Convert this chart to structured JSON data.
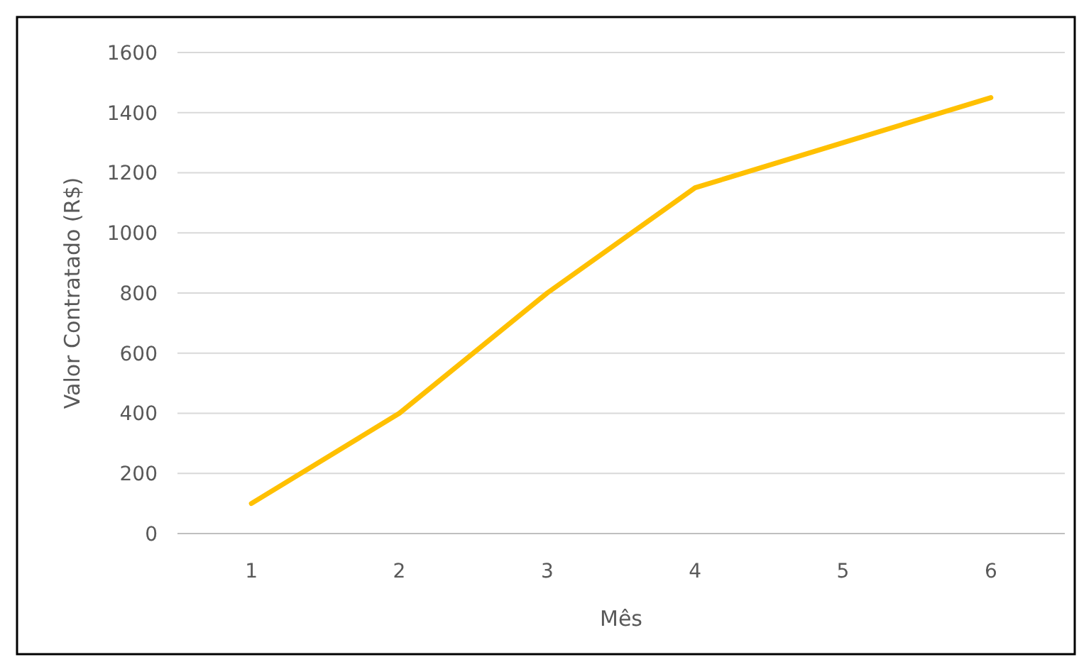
{
  "chart_data": {
    "type": "line",
    "xlabel": "Mês",
    "ylabel": "Valor Contratado (R$)",
    "categories": [
      "1",
      "2",
      "3",
      "4",
      "5",
      "6"
    ],
    "series": [
      {
        "color": "#ffc000",
        "values": [
          100,
          400,
          800,
          1150,
          1300,
          1450
        ]
      }
    ],
    "ylim": [
      0,
      1600
    ],
    "yticks": [
      0,
      200,
      400,
      600,
      800,
      1000,
      1200,
      1400,
      1600
    ],
    "grid": "y",
    "marker": "none",
    "line_style": "solid"
  }
}
